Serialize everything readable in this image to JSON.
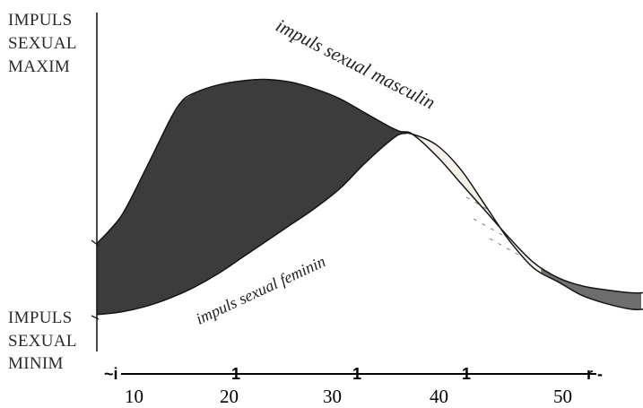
{
  "chart_data": {
    "type": "area",
    "title": "",
    "xlabel": "",
    "ylabel": "",
    "x_ticks": [
      10,
      20,
      30,
      40,
      50
    ],
    "xlim": [
      10,
      55
    ],
    "ylim": [
      0,
      1
    ],
    "y_labels": {
      "top": [
        "IMPULS",
        "SEXUAL",
        "MAXIM"
      ],
      "bottom": [
        "IMPULS",
        "SEXUAL",
        "MINIM"
      ]
    },
    "axis_glyphs": [
      "~i",
      "1",
      "1",
      "1",
      "r -"
    ],
    "grid": false,
    "legend": "none",
    "colors": {
      "male_dominant_fill": "#3c3c3c",
      "female_dominant_fill": "#f4f1ea",
      "late_fill": "#6e6e6e",
      "line": "#151515"
    },
    "series": [
      {
        "name": "impuls sexual masculin",
        "x": [
          10,
          12,
          14,
          16,
          17,
          18,
          20,
          22,
          24,
          26,
          28,
          30,
          32,
          34,
          35,
          36,
          38,
          40,
          42,
          44,
          46,
          48,
          50,
          52,
          54,
          55
        ],
        "y": [
          0.28,
          0.38,
          0.55,
          0.73,
          0.8,
          0.83,
          0.86,
          0.875,
          0.88,
          0.87,
          0.845,
          0.81,
          0.76,
          0.71,
          0.69,
          0.68,
          0.6,
          0.5,
          0.4,
          0.3,
          0.21,
          0.155,
          0.125,
          0.11,
          0.1,
          0.1
        ]
      },
      {
        "name": "impuls sexual feminin",
        "x": [
          10,
          12,
          14,
          16,
          18,
          20,
          22,
          24,
          26,
          28,
          30,
          32,
          34,
          35,
          36,
          38,
          40,
          42,
          44,
          46,
          48,
          50,
          52,
          54,
          55
        ],
        "y": [
          0.02,
          0.03,
          0.05,
          0.08,
          0.12,
          0.17,
          0.23,
          0.29,
          0.35,
          0.41,
          0.48,
          0.57,
          0.65,
          0.68,
          0.68,
          0.64,
          0.55,
          0.42,
          0.29,
          0.19,
          0.14,
          0.09,
          0.06,
          0.04,
          0.04
        ]
      }
    ]
  }
}
